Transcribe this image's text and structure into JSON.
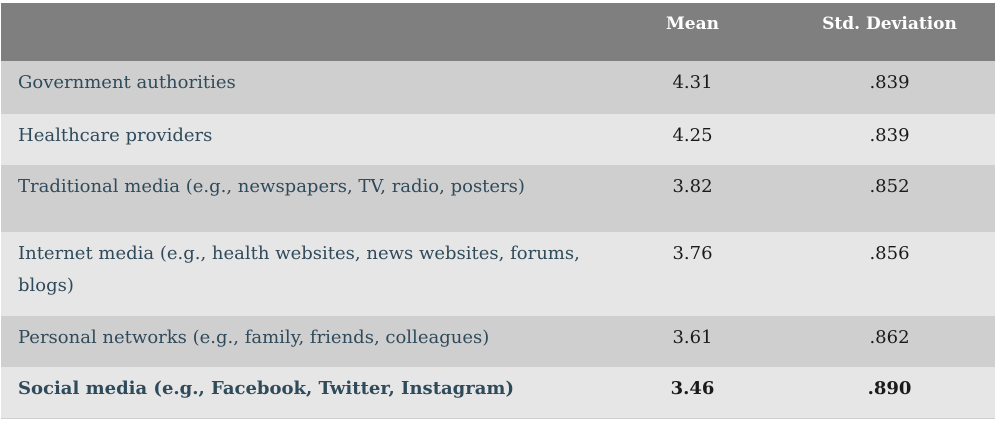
{
  "table": {
    "headers": [
      "",
      "Mean",
      "Std. Deviation"
    ],
    "rows": [
      {
        "label": "Government authorities",
        "mean": "4.31",
        "sd": ".839"
      },
      {
        "label": "Healthcare providers",
        "mean": "4.25",
        "sd": ".839"
      },
      {
        "label": "Traditional media (e.g., newspapers, TV, radio, posters)",
        "mean": "3.82",
        "sd": ".852"
      },
      {
        "label": "Internet media (e.g., health websites, news websites, forums, blogs)",
        "mean": "3.76",
        "sd": ".856"
      },
      {
        "label": "Personal networks (e.g., family, friends, colleagues)",
        "mean": "3.61",
        "sd": ".862"
      },
      {
        "label": "Social media (e.g., Facebook, Twitter, Instagram)",
        "mean": "3.46",
        "sd": ".890"
      }
    ]
  }
}
